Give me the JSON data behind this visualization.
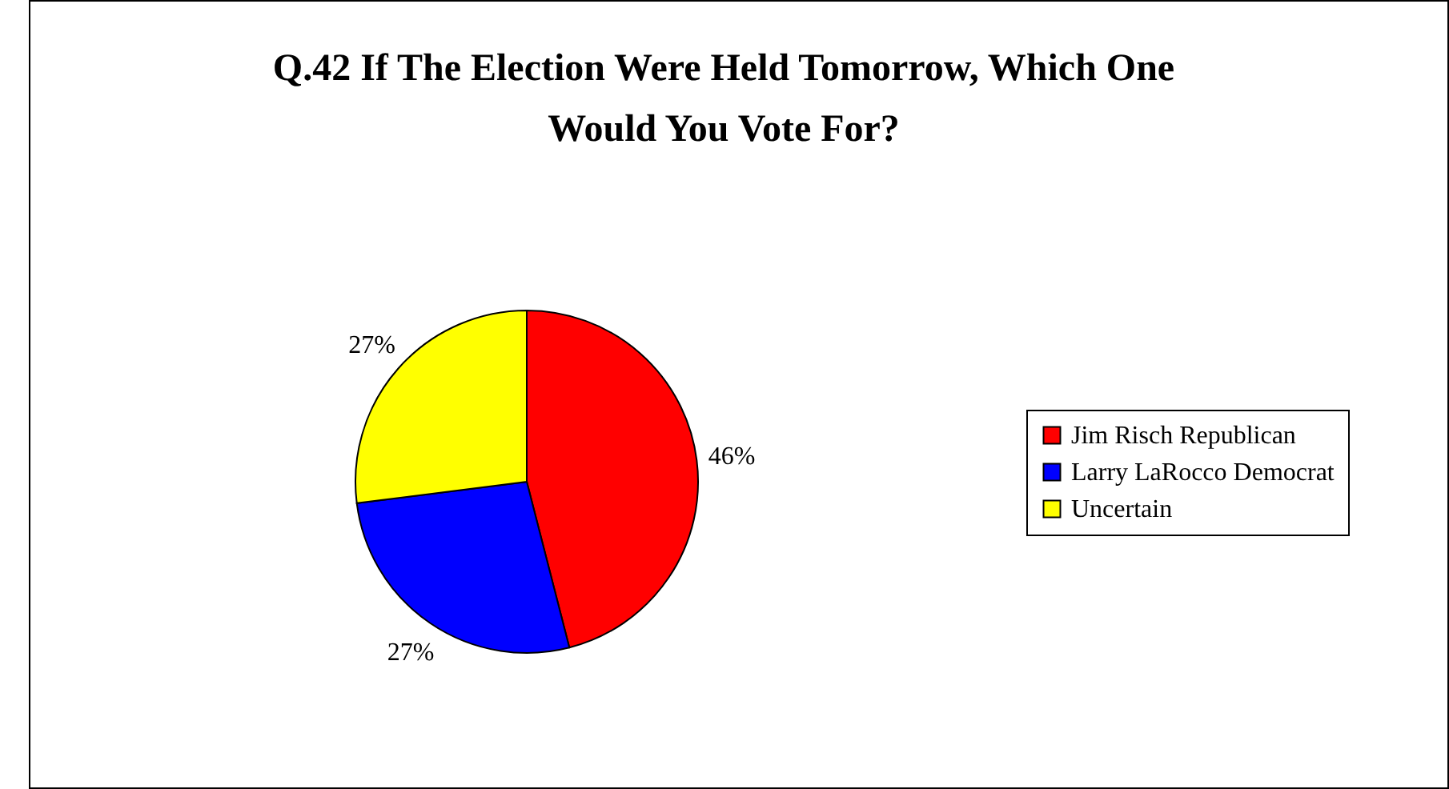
{
  "chart_data": {
    "type": "pie",
    "title": "Q.42 If The Election Were Held Tomorrow, Which One Would You Vote For?",
    "categories": [
      "Jim Risch Republican",
      "Larry LaRocco Democrat",
      "Uncertain"
    ],
    "values": [
      46,
      27,
      27
    ],
    "colors": [
      "#ff0000",
      "#0000ff",
      "#ffff00"
    ],
    "value_labels": [
      "46%",
      "27%",
      "27%"
    ],
    "legend": "right"
  }
}
